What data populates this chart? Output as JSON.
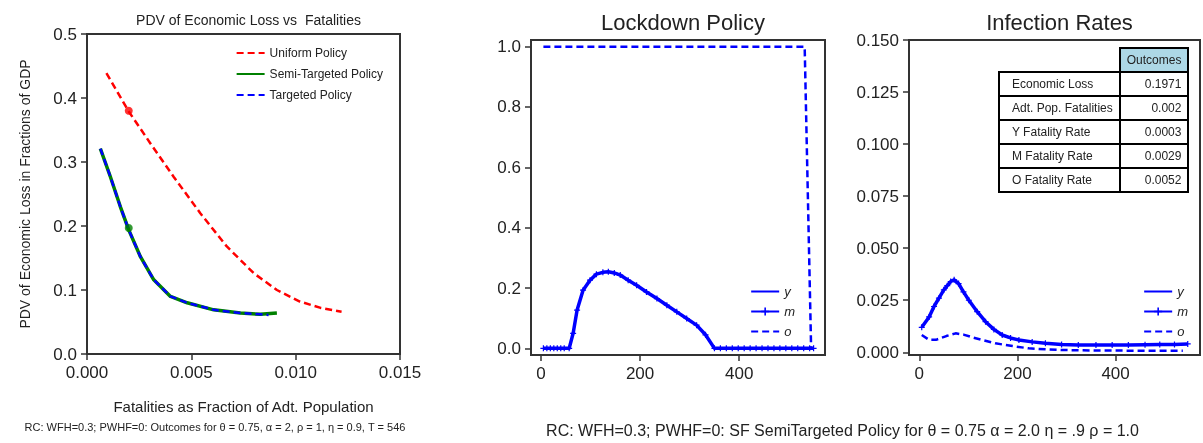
{
  "chart_data": [
    {
      "type": "line",
      "title": "PDV of Economic Loss vs  Fatalities",
      "xlabel": "Fatalities as Fraction of Adt. Population",
      "ylabel": "PDV of Economic Loss in Fractions of GDP",
      "xlim": [
        0,
        0.015
      ],
      "ylim": [
        0,
        0.5
      ],
      "xticks": [
        {
          "value": 0,
          "label": "0.000"
        },
        {
          "value": 0.005,
          "label": "0.005"
        },
        {
          "value": 0.01,
          "label": "0.010"
        },
        {
          "value": 0.015,
          "label": "0.015"
        }
      ],
      "yticks": [
        {
          "value": 0,
          "label": "0.0"
        },
        {
          "value": 0.1,
          "label": "0.1"
        },
        {
          "value": 0.2,
          "label": "0.2"
        },
        {
          "value": 0.3,
          "label": "0.3"
        },
        {
          "value": 0.4,
          "label": "0.4"
        },
        {
          "value": 0.5,
          "label": "0.5"
        }
      ],
      "legend": "top right",
      "annotations": [
        "RC: WFH=0.3; PWHF=0: Outcomes for θ = 0.75,  α = 2, ρ = 1, η = 0.9,  T = 546"
      ],
      "series": [
        {
          "name": "Uniform Policy",
          "color": "#ff0000",
          "line_style": "dashed",
          "marker": "none",
          "x": [
            0.00093,
            0.002,
            0.00304,
            0.00415,
            0.00543,
            0.0067,
            0.008,
            0.0091,
            0.0102,
            0.0112,
            0.0122
          ],
          "values": [
            0.439,
            0.379,
            0.329,
            0.277,
            0.22,
            0.168,
            0.126,
            0.1,
            0.082,
            0.072,
            0.066
          ]
        },
        {
          "name": "Semi-Targeted Policy",
          "color": "#008000",
          "line_style": "solid",
          "marker": "none",
          "x": [
            0.00064,
            0.00112,
            0.0016,
            0.002,
            0.00256,
            0.0032,
            0.004,
            0.0048,
            0.00607,
            0.00735,
            0.0083,
            0.0091
          ],
          "values": [
            0.321,
            0.277,
            0.23,
            0.194,
            0.152,
            0.116,
            0.09,
            0.08,
            0.069,
            0.064,
            0.062,
            0.064
          ]
        },
        {
          "name": "Targeted Policy",
          "color": "#0000ff",
          "line_style": "dashed",
          "marker": "none",
          "x": [
            0.00064,
            0.00112,
            0.0016,
            0.002,
            0.00256,
            0.0032,
            0.004,
            0.0048,
            0.00607,
            0.00735,
            0.0083,
            0.0087
          ],
          "values": [
            0.321,
            0.277,
            0.23,
            0.194,
            0.152,
            0.116,
            0.09,
            0.08,
            0.069,
            0.064,
            0.062,
            0.061
          ]
        },
        {
          "type": "scatter",
          "color": "#ff0000",
          "marker": "circle",
          "x": [
            0.002
          ],
          "values": [
            0.38
          ]
        },
        {
          "type": "scatter",
          "color": "#008000",
          "marker": "circle",
          "x": [
            0.002
          ],
          "values": [
            0.197
          ]
        }
      ]
    },
    {
      "type": "line",
      "title": "Lockdown Policy",
      "xlim": [
        -20,
        573
      ],
      "ylim": [
        -0.022,
        1.022
      ],
      "xticks": [
        0,
        200,
        400
      ],
      "yticks": [
        {
          "value": 0,
          "label": "0.0"
        },
        {
          "value": 0.2,
          "label": "0.2"
        },
        {
          "value": 0.4,
          "label": "0.4"
        },
        {
          "value": 0.6,
          "label": "0.6"
        },
        {
          "value": 0.8,
          "label": "0.8"
        },
        {
          "value": 1,
          "label": "1.0"
        }
      ],
      "legend": "bottom right",
      "annotations": [
        "RC: WFH=0.3; PWHF=0: SF SemiTargeted Policy for   θ = 0.75  α = 2.0  η = .9 ρ = 1.0"
      ],
      "series": [
        {
          "name": "y",
          "color": "#0000ff",
          "line_style": "solid",
          "marker": "none"
        },
        {
          "name": "m",
          "color": "#0000ff",
          "line_style": "solid",
          "marker": "cross",
          "x": [
            5,
            12,
            19,
            26,
            33,
            40,
            47,
            57,
            65,
            73,
            85,
            99,
            112,
            125,
            136,
            148,
            160,
            176,
            193,
            213,
            234,
            254,
            274,
            294,
            314,
            332,
            350,
            362,
            374,
            386,
            398,
            410,
            422,
            434,
            446,
            458,
            470,
            482,
            494,
            506,
            518,
            530,
            542,
            550
          ],
          "values": [
            0,
            0,
            0,
            0,
            0,
            0,
            0,
            0,
            0.05,
            0.127,
            0.193,
            0.226,
            0.246,
            0.252,
            0.254,
            0.25,
            0.243,
            0.226,
            0.209,
            0.187,
            0.165,
            0.143,
            0.121,
            0.099,
            0.077,
            0.045,
            0,
            0,
            0,
            0,
            0,
            0,
            0,
            0,
            0,
            0,
            0,
            0,
            0,
            0,
            0,
            0,
            0,
            0
          ]
        },
        {
          "name": "o",
          "color": "#0000ff",
          "line_style": "dashed",
          "marker": "none",
          "x": [
            5,
            532,
            545
          ],
          "values": [
            1,
            1,
            0
          ]
        }
      ]
    },
    {
      "type": "line",
      "title": "Infection Rates",
      "xlim": [
        -21,
        572
      ],
      "ylim": [
        -0.0013,
        0.15
      ],
      "xticks": [
        0,
        200,
        400
      ],
      "yticks": [
        {
          "value": 0,
          "label": "0.000"
        },
        {
          "value": 0.025,
          "label": "0.025"
        },
        {
          "value": 0.05,
          "label": "0.050"
        },
        {
          "value": 0.075,
          "label": "0.075"
        },
        {
          "value": 0.1,
          "label": "0.100"
        },
        {
          "value": 0.125,
          "label": "0.125"
        },
        {
          "value": 0.15,
          "label": "0.150"
        }
      ],
      "legend": "bottom right",
      "series": [
        {
          "name": "y",
          "color": "#0000ff",
          "line_style": "solid",
          "marker": "none"
        },
        {
          "name": "m",
          "color": "#0000ff",
          "line_style": "solid",
          "marker": "cross",
          "x": [
            5,
            20,
            30,
            40,
            50,
            57,
            64,
            71,
            80,
            90,
            101,
            118,
            135,
            152,
            169,
            186,
            203,
            230,
            257,
            290,
            324,
            360,
            393,
            426,
            460,
            490,
            520,
            547
          ],
          "values": [
            0.012,
            0.017,
            0.022,
            0.026,
            0.03,
            0.032,
            0.034,
            0.0348,
            0.033,
            0.029,
            0.025,
            0.0195,
            0.0147,
            0.011,
            0.0083,
            0.0069,
            0.0059,
            0.005,
            0.0043,
            0.0038,
            0.0035,
            0.0035,
            0.0035,
            0.0035,
            0.0036,
            0.0037,
            0.0038,
            0.004
          ]
        },
        {
          "name": "o",
          "color": "#0000ff",
          "line_style": "dashed",
          "marker": "none",
          "x": [
            5,
            20,
            34,
            55,
            74,
            90,
            108,
            130,
            155,
            190,
            223,
            260,
            290,
            350,
            420,
            480,
            537
          ],
          "values": [
            0.0083,
            0.006,
            0.006,
            0.0078,
            0.0091,
            0.0085,
            0.0072,
            0.0058,
            0.0043,
            0.003,
            0.0019,
            0.0014,
            0.0011,
            0.0009,
            0.0008,
            0.0008,
            0.0008
          ]
        }
      ]
    },
    {
      "type": "other",
      "title": "Outcomes",
      "data_labels": true,
      "categories": [
        "Economic Loss",
        "Adt. Pop. Fatalities",
        "Y Fatality Rate",
        "M Fatality Rate",
        "O Fatality Rate"
      ],
      "values": [
        0.1971,
        0.002,
        0.0003,
        0.0029,
        0.0052
      ]
    }
  ]
}
